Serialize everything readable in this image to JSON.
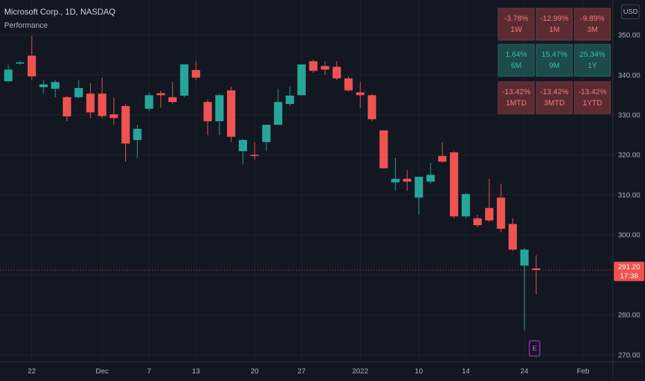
{
  "chart_data": {
    "type": "candlestick",
    "title": "Microsoft Corp., 1D, NASDAQ",
    "indicator": "Performance",
    "currency": "USD",
    "categories": [
      null,
      null,
      "22",
      null,
      null,
      null,
      null,
      null,
      "Dec",
      null,
      null,
      null,
      "7",
      null,
      null,
      null,
      "13",
      null,
      null,
      null,
      null,
      "20",
      null,
      null,
      null,
      "27",
      null,
      null,
      null,
      null,
      "2022",
      null,
      null,
      null,
      null,
      "10",
      null,
      null,
      null,
      "14",
      null,
      null,
      null,
      null,
      "24",
      null,
      null,
      null,
      null,
      "Feb"
    ],
    "open": [
      338.4,
      342.8,
      344.8,
      336.9,
      336.5,
      334.4,
      334.4,
      335.3,
      335.3,
      330.1,
      332.2,
      323.7,
      331.5,
      335.4,
      334.4,
      334.8,
      341.2,
      333.2,
      328.4,
      336.1,
      320.9,
      320.0,
      323.2,
      327.5,
      332.7,
      334.9,
      343.4,
      342.2,
      342.0,
      339.1,
      335.6,
      334.9,
      326.1,
      313.1,
      314.0,
      309.3,
      313.3,
      319.7,
      320.6,
      304.6,
      304.1,
      306.7,
      309.3,
      302.7,
      292.3,
      291.6,
      null,
      null,
      null,
      null
    ],
    "high": [
      342.5,
      343.5,
      349.7,
      338.7,
      338.7,
      334.8,
      338.7,
      337.9,
      339.3,
      334.4,
      332.7,
      327.5,
      335.6,
      336.0,
      338.2,
      342.6,
      343.4,
      333.9,
      335.3,
      337.0,
      324.0,
      323.2,
      327.5,
      336.5,
      337.0,
      342.6,
      343.8,
      343.4,
      343.4,
      339.6,
      338.2,
      335.3,
      326.1,
      319.2,
      316.2,
      314.5,
      318.0,
      323.2,
      320.9,
      310.5,
      305.0,
      314.0,
      312.8,
      304.1,
      296.7,
      294.9,
      null,
      null,
      null,
      null
    ],
    "low": [
      338.2,
      342.5,
      338.7,
      335.3,
      334.4,
      328.4,
      334.1,
      329.2,
      329.2,
      327.5,
      318.3,
      319.2,
      331.0,
      331.8,
      332.7,
      334.4,
      338.7,
      324.9,
      324.9,
      323.2,
      317.6,
      318.8,
      320.9,
      327.5,
      332.2,
      334.9,
      340.5,
      340.0,
      338.7,
      335.8,
      331.8,
      328.4,
      316.6,
      311.0,
      311.0,
      305.0,
      312.8,
      318.0,
      304.1,
      304.1,
      301.9,
      303.2,
      300.6,
      296.0,
      276.1,
      285.1,
      null,
      null,
      null,
      null
    ],
    "close": [
      341.3,
      343.1,
      339.6,
      337.6,
      338.2,
      329.6,
      336.7,
      330.6,
      329.7,
      329.2,
      322.8,
      326.5,
      334.9,
      334.9,
      333.2,
      342.6,
      339.3,
      328.4,
      334.9,
      324.5,
      323.7,
      319.7,
      327.5,
      333.2,
      334.8,
      342.6,
      341.0,
      341.3,
      339.1,
      336.1,
      334.9,
      328.9,
      316.6,
      314.0,
      313.3,
      314.5,
      315.0,
      318.3,
      304.6,
      310.2,
      302.4,
      303.6,
      301.5,
      296.3,
      296.3,
      291.2,
      null,
      null,
      null,
      null
    ],
    "up_color": "#26a69a",
    "down_color": "#ef5350",
    "ylim": [
      268.3,
      358.7
    ],
    "yticks": [
      {
        "value": 270,
        "label": "270.00"
      },
      {
        "value": 280,
        "label": "280.00"
      },
      {
        "value": 290,
        "label": "290.00"
      },
      {
        "value": 300,
        "label": "300.00"
      },
      {
        "value": 310,
        "label": "310.00"
      },
      {
        "value": 320,
        "label": "320.00"
      },
      {
        "value": 330,
        "label": "330.00"
      },
      {
        "value": 340,
        "label": "340.00"
      },
      {
        "value": 350,
        "label": "350.00"
      }
    ],
    "grid": true,
    "last_price": {
      "value": 291.2,
      "label": "291.20"
    },
    "countdown": "17:38",
    "earnings_marker": "E",
    "performance": [
      [
        {
          "value": -3.78,
          "value_label": "-3.78%",
          "period": "1W"
        },
        {
          "value": -12.99,
          "value_label": "-12.99%",
          "period": "1M"
        },
        {
          "value": -9.89,
          "value_label": "-9.89%",
          "period": "3M"
        }
      ],
      [
        {
          "value": 1.64,
          "value_label": "1.64%",
          "period": "6M"
        },
        {
          "value": 15.47,
          "value_label": "15.47%",
          "period": "9M"
        },
        {
          "value": 25.34,
          "value_label": "25.34%",
          "period": "1Y"
        }
      ],
      [
        {
          "value": -13.42,
          "value_label": "-13.42%",
          "period": "1MTD"
        },
        {
          "value": -13.42,
          "value_label": "-13.42%",
          "period": "3MTD"
        },
        {
          "value": -13.42,
          "value_label": "-13.42%",
          "period": "1YTD"
        }
      ]
    ]
  }
}
